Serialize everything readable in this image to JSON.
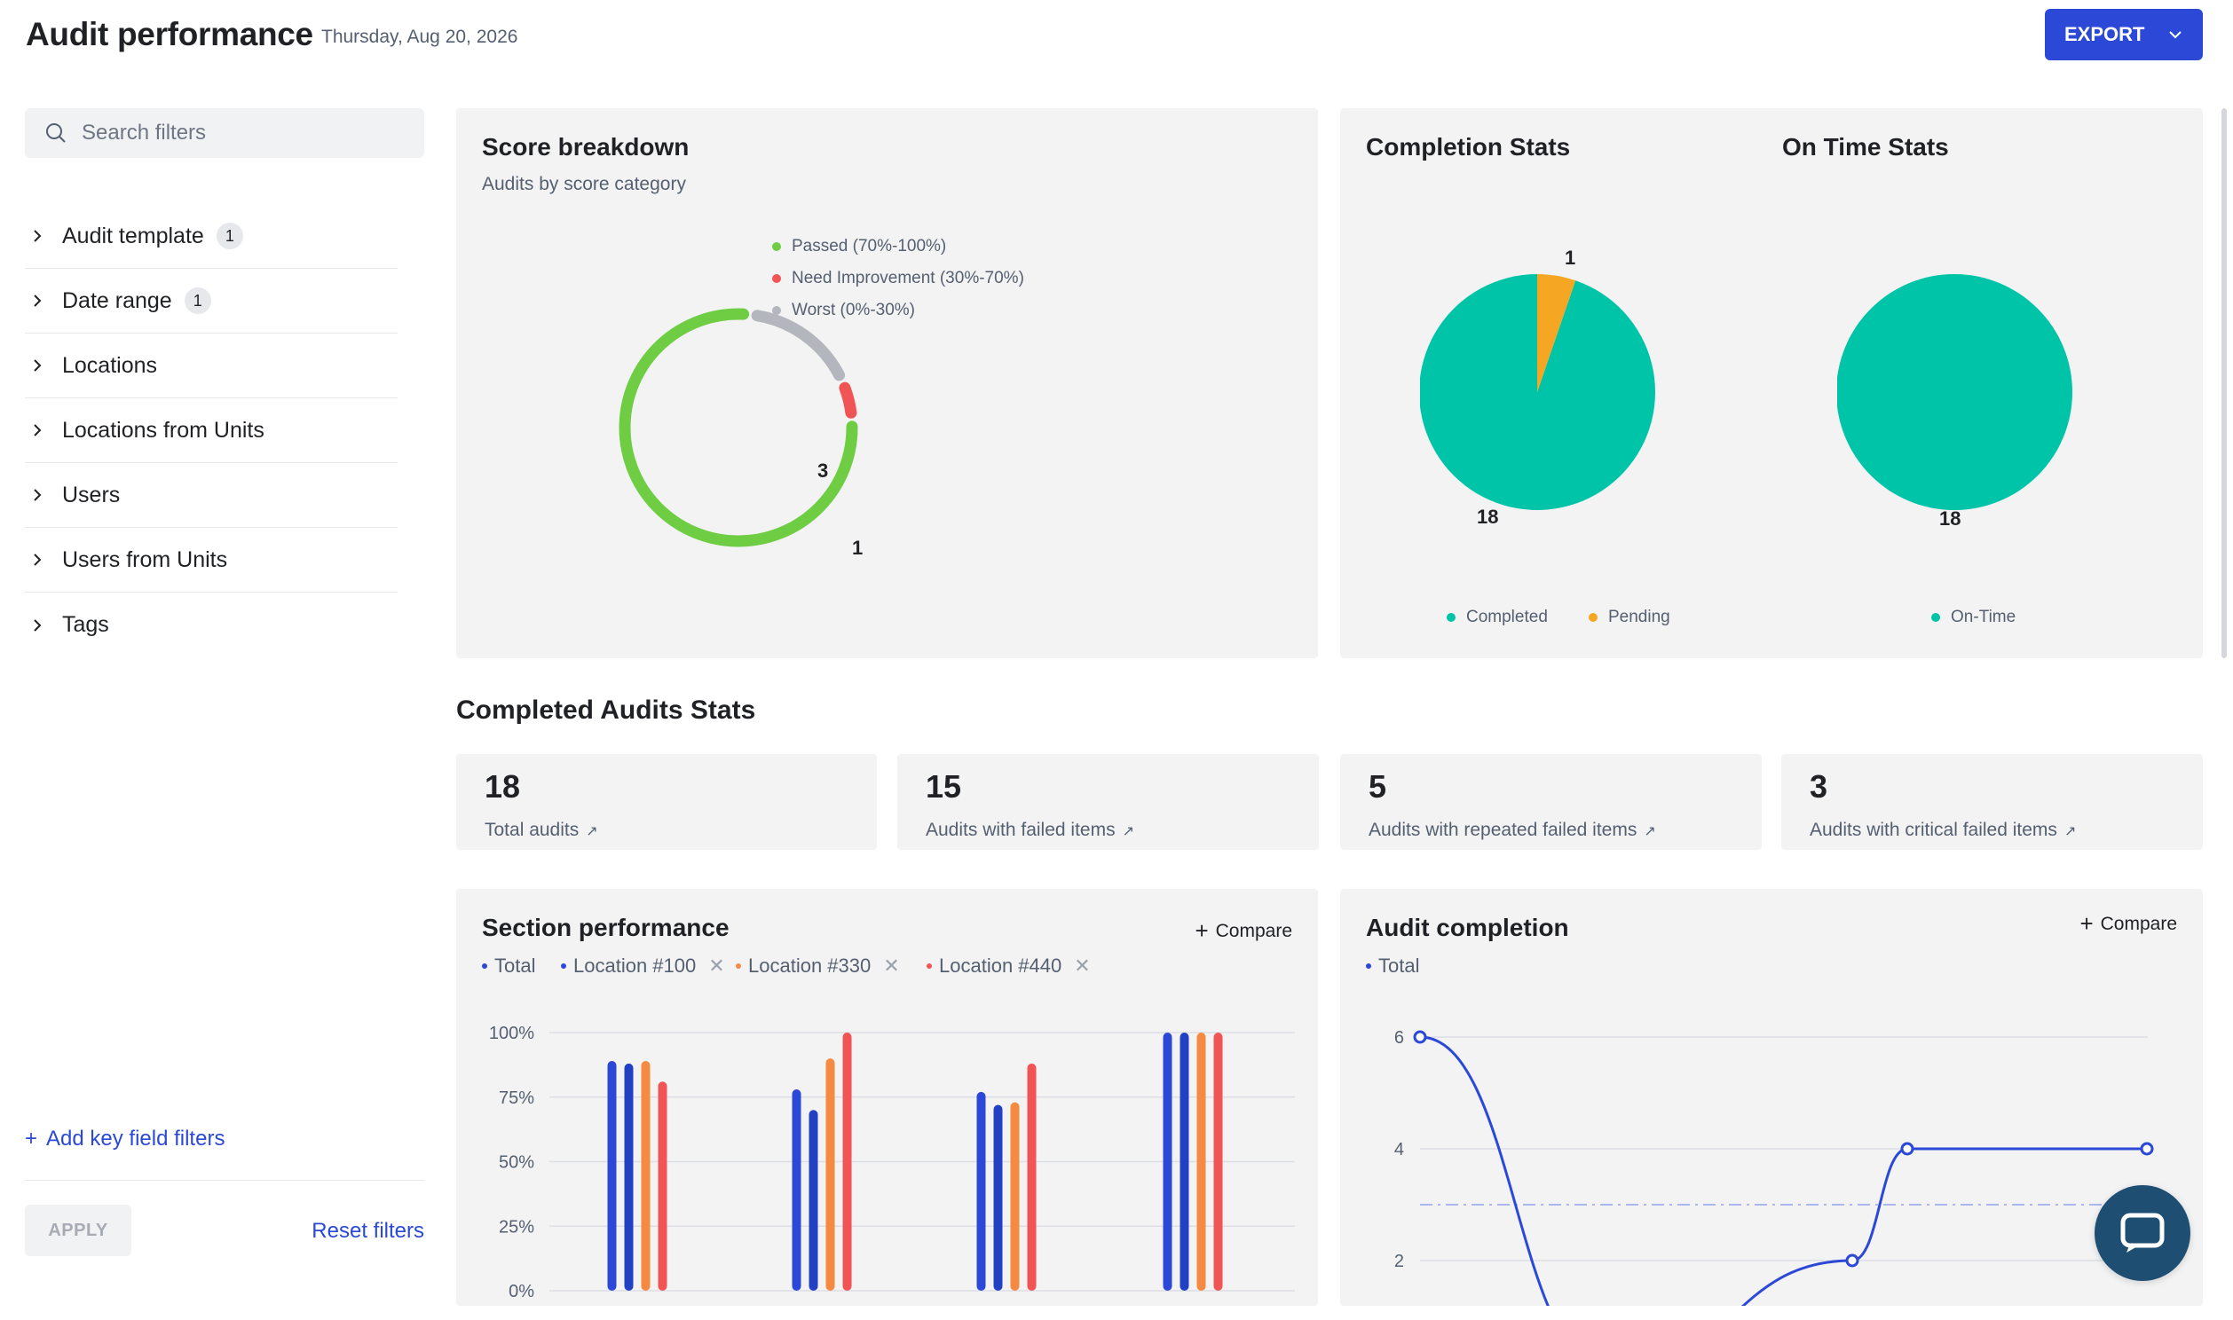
{
  "header": {
    "title": "Audit performance",
    "date": "Thursday, Aug 20, 2026",
    "export_label": "EXPORT"
  },
  "sidebar": {
    "search_placeholder": "Search filters",
    "filters": [
      {
        "label": "Audit template",
        "badge": "1"
      },
      {
        "label": "Date range",
        "badge": "1"
      },
      {
        "label": "Locations",
        "badge": ""
      },
      {
        "label": "Locations from Units",
        "badge": ""
      },
      {
        "label": "Users",
        "badge": ""
      },
      {
        "label": "Users from Units",
        "badge": ""
      },
      {
        "label": "Tags",
        "badge": ""
      }
    ],
    "add_key_label": "Add key field filters",
    "apply_label": "APPLY",
    "reset_label": "Reset filters"
  },
  "score_breakdown": {
    "title": "Score breakdown",
    "subtitle": "Audits by score category",
    "legend": [
      {
        "label": "Passed (70%-100%)",
        "color": "#6fcd43",
        "value": 14
      },
      {
        "label": "Need Improvement (30%-70%)",
        "color": "#f05454",
        "value": 1
      },
      {
        "label": "Worst (0%-30%)",
        "color": "#b3b6bd",
        "value": 3
      }
    ],
    "labels": {
      "passed": "14",
      "need": "1",
      "worst": "3"
    }
  },
  "completion_stats": {
    "title": "Completion Stats",
    "completed": 18,
    "pending": 1,
    "label_completed": "18",
    "label_pending": "1",
    "legend_completed": "Completed",
    "legend_pending": "Pending",
    "color_completed": "#00c4a7",
    "color_pending": "#f5a623"
  },
  "on_time_stats": {
    "title": "On Time Stats",
    "label": "18",
    "legend": "On-Time",
    "color": "#00c4a7"
  },
  "completed_audits_stats": {
    "title": "Completed Audits Stats",
    "cards": [
      {
        "value": "18",
        "label": "Total audits"
      },
      {
        "value": "15",
        "label": "Audits with failed items"
      },
      {
        "value": "5",
        "label": "Audits with repeated failed items"
      },
      {
        "value": "3",
        "label": "Audits with critical failed items"
      }
    ],
    "arrow": "↗"
  },
  "section_performance": {
    "title": "Section performance",
    "compare_label": "Compare",
    "series_legend": [
      {
        "label": "Total",
        "color": "#2b49d6",
        "removable": false
      },
      {
        "label": "Location #100",
        "color": "#2b49d6",
        "removable": true
      },
      {
        "label": "Location #330",
        "color": "#f58a42",
        "removable": true
      },
      {
        "label": "Location #440",
        "color": "#f05454",
        "removable": true
      }
    ],
    "y_ticks": [
      "100%",
      "75%",
      "50%",
      "25%",
      "0%"
    ]
  },
  "audit_completion": {
    "title": "Audit completion",
    "compare_label": "Compare",
    "series_legend": [
      {
        "label": "Total",
        "color": "#2b49d6"
      }
    ],
    "y_ticks": [
      "6",
      "4",
      "2"
    ]
  },
  "chart_data": [
    {
      "type": "pie",
      "title": "Score breakdown",
      "categories": [
        "Passed (70%-100%)",
        "Need Improvement (30%-70%)",
        "Worst (0%-30%)"
      ],
      "values": [
        14,
        1,
        3
      ]
    },
    {
      "type": "pie",
      "title": "Completion Stats",
      "categories": [
        "Completed",
        "Pending"
      ],
      "values": [
        18,
        1
      ]
    },
    {
      "type": "pie",
      "title": "On Time Stats",
      "categories": [
        "On-Time"
      ],
      "values": [
        18
      ]
    },
    {
      "type": "bar",
      "title": "Section performance",
      "categories": [
        "",
        "",
        "",
        ""
      ],
      "series": [
        {
          "name": "Total",
          "color": "#2b49d6",
          "values": [
            89,
            78,
            77,
            100
          ]
        },
        {
          "name": "Location #100",
          "color": "#2240c4",
          "values": [
            88,
            70,
            72,
            100
          ]
        },
        {
          "name": "Location #330",
          "color": "#f58a42",
          "values": [
            89,
            90,
            73,
            100
          ]
        },
        {
          "name": "Location #440",
          "color": "#f05454",
          "values": [
            81,
            100,
            88,
            100
          ]
        }
      ],
      "ylim": [
        0,
        100
      ]
    },
    {
      "type": "line",
      "title": "Audit completion",
      "series": [
        {
          "name": "Total",
          "color": "#2b49d6",
          "x": [
            0,
            1,
            2,
            3,
            4
          ],
          "y": [
            6,
            0,
            2,
            4,
            4
          ]
        }
      ],
      "ylim": [
        0,
        6
      ]
    }
  ]
}
